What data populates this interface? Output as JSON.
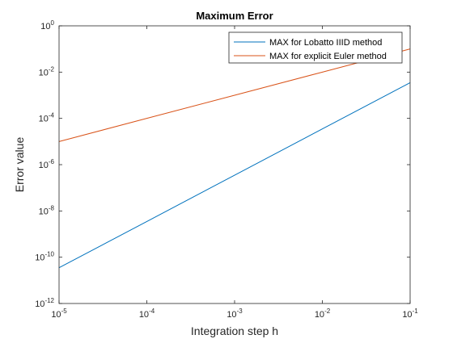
{
  "chart_data": {
    "type": "line",
    "title": "Maximum Error",
    "xlabel": "Integration step h",
    "ylabel": "Error value",
    "xscale": "log",
    "yscale": "log",
    "xlim": [
      1e-05,
      0.1
    ],
    "ylim": [
      1e-12,
      1
    ],
    "grid": false,
    "legend_position": "top-right",
    "x_ticks": [
      {
        "base": "10",
        "exp": "-5"
      },
      {
        "base": "10",
        "exp": "-4"
      },
      {
        "base": "10",
        "exp": "-3"
      },
      {
        "base": "10",
        "exp": "-2"
      },
      {
        "base": "10",
        "exp": "-1"
      }
    ],
    "y_ticks": [
      {
        "base": "10",
        "exp": "-12"
      },
      {
        "base": "10",
        "exp": "-10"
      },
      {
        "base": "10",
        "exp": "-8"
      },
      {
        "base": "10",
        "exp": "-6"
      },
      {
        "base": "10",
        "exp": "-4"
      },
      {
        "base": "10",
        "exp": "-2"
      },
      {
        "base": "10",
        "exp": "0"
      }
    ],
    "series": [
      {
        "name": "MAX for Lobatto IIID method",
        "color": "#0072BD",
        "x": [
          1e-05,
          0.0001,
          0.001,
          0.01,
          0.1
        ],
        "y": [
          3.5e-11,
          3.5e-09,
          3.5e-07,
          3.5e-05,
          0.0035
        ]
      },
      {
        "name": "MAX for explicit Euler method",
        "color": "#D95319",
        "x": [
          1e-05,
          0.0001,
          0.001,
          0.01,
          0.1
        ],
        "y": [
          1e-05,
          0.0001,
          0.001,
          0.01,
          0.1
        ]
      }
    ]
  }
}
